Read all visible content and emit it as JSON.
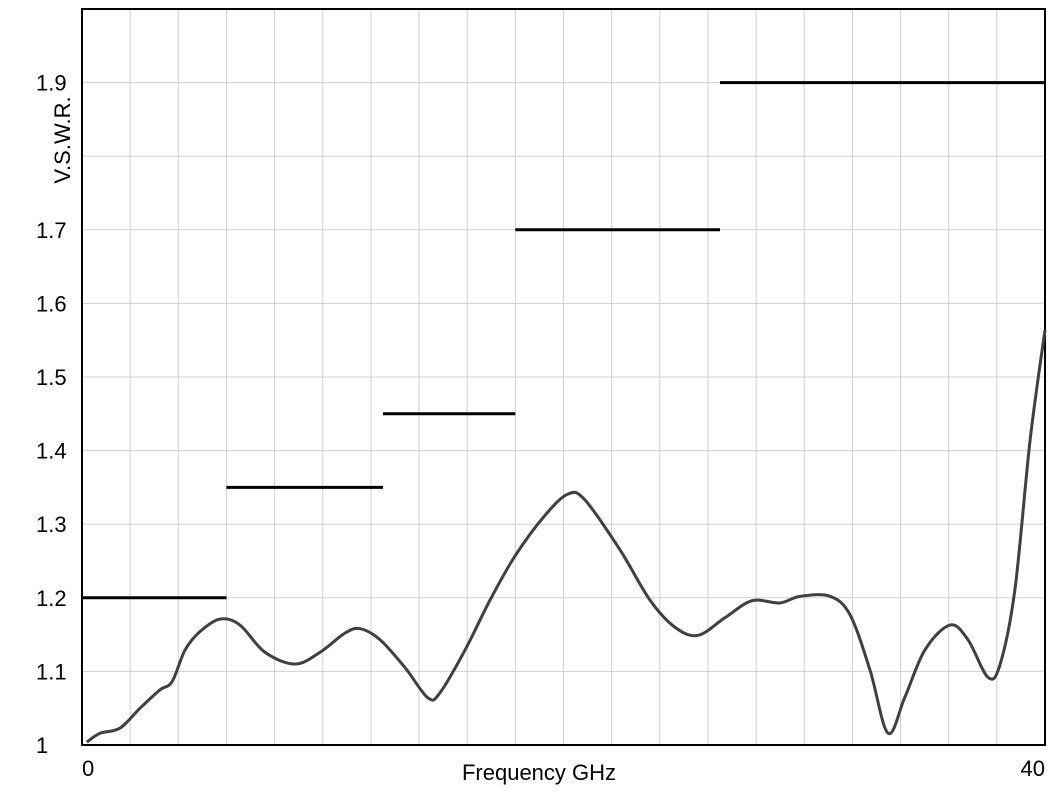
{
  "chart_data": {
    "type": "line",
    "xlabel": "Frequency GHz",
    "ylabel": "V.S.W.R.",
    "xlim": [
      0,
      40
    ],
    "xticks": [
      0,
      40
    ],
    "xgrid": [
      2,
      4,
      6,
      8,
      10,
      12,
      14,
      16,
      18,
      20,
      22,
      24,
      26,
      28,
      30,
      32,
      34,
      36,
      38
    ],
    "ylim": [
      1,
      2
    ],
    "yticks": [
      1,
      1.1,
      1.2,
      1.3,
      1.4,
      1.5,
      1.6,
      1.7,
      {
        "value": 1.8,
        "label": null
      },
      1.9
    ],
    "grid": true,
    "series": [
      {
        "color": "#404040",
        "x": [
          0.2,
          0.75,
          1.58,
          2.41,
          3.24,
          3.74,
          4.28,
          4.9,
          5.73,
          6.56,
          7.6,
          8.85,
          9.89,
          10.92,
          11.55,
          12.38,
          13.42,
          14.37,
          14.87,
          15.91,
          16.95,
          17.99,
          19.23,
          20.19,
          20.89,
          22.35,
          23.59,
          24.63,
          25.59,
          26.71,
          27.83,
          28.99,
          29.82,
          31.07,
          31.9,
          32.73,
          33.48,
          34.18,
          35.01,
          36.05,
          36.8,
          37.63,
          38.13,
          38.75,
          39.38,
          40
        ],
        "values": [
          1.004,
          1.016,
          1.023,
          1.05,
          1.075,
          1.086,
          1.129,
          1.154,
          1.171,
          1.163,
          1.126,
          1.11,
          1.126,
          1.152,
          1.158,
          1.143,
          1.105,
          1.064,
          1.071,
          1.129,
          1.197,
          1.257,
          1.312,
          1.341,
          1.333,
          1.265,
          1.197,
          1.16,
          1.149,
          1.173,
          1.196,
          1.193,
          1.202,
          1.202,
          1.177,
          1.102,
          1.016,
          1.065,
          1.129,
          1.163,
          1.143,
          1.092,
          1.109,
          1.211,
          1.414,
          1.564
        ]
      }
    ],
    "limits": {
      "color": "#000000",
      "segments": [
        {
          "x": [
            0,
            6
          ],
          "value": 1.2
        },
        {
          "x": [
            6,
            12.5
          ],
          "value": 1.35
        },
        {
          "x": [
            12.5,
            18
          ],
          "value": 1.45
        },
        {
          "x": [
            18,
            26.5
          ],
          "value": 1.7
        },
        {
          "x": [
            26.5,
            40
          ],
          "value": 1.9
        }
      ]
    }
  }
}
